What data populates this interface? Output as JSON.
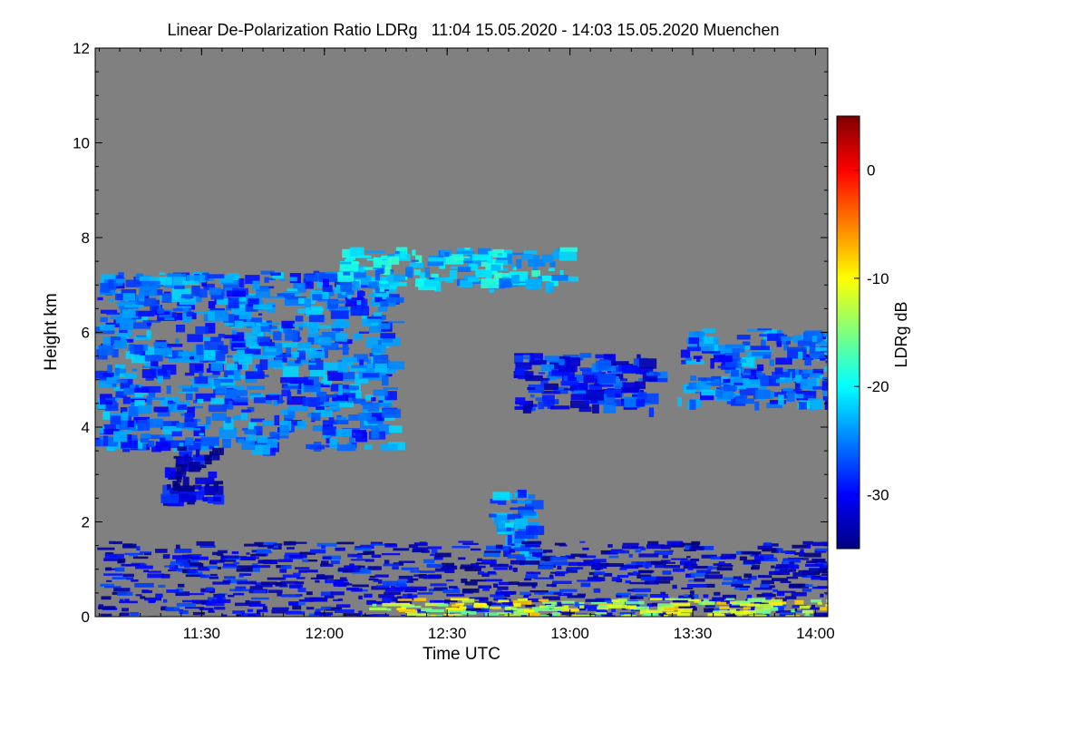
{
  "chart_data": {
    "type": "heatmap",
    "title": "Linear De-Polarization Ratio LDRg   11:04 15.05.2020 - 14:03 15.05.2020 Muenchen",
    "xlabel": "Time UTC",
    "ylabel": "Height km",
    "x_ticks": [
      "11:30",
      "12:00",
      "12:30",
      "13:00",
      "13:30",
      "14:00"
    ],
    "x_tick_values_min": [
      690,
      720,
      750,
      780,
      810,
      840
    ],
    "xlim_min": [
      664,
      843
    ],
    "y_ticks": [
      "0",
      "2",
      "4",
      "6",
      "8",
      "10",
      "12"
    ],
    "y_tick_values": [
      0,
      2,
      4,
      6,
      8,
      10,
      12
    ],
    "ylim": [
      0,
      12
    ],
    "colorbar": {
      "label": "LDRg dB",
      "ticks": [
        "0",
        "-10",
        "-20",
        "-30"
      ],
      "tick_values": [
        0,
        -10,
        -20,
        -30
      ],
      "range": [
        -35,
        5
      ],
      "colormap": [
        "#00007f",
        "#0000ff",
        "#007fff",
        "#00ffff",
        "#7fff7f",
        "#ffff00",
        "#ff7f00",
        "#ff0000",
        "#7f0000"
      ]
    },
    "background_color": "#808080",
    "features": [
      {
        "name": "upper-cloud",
        "x": [
          664,
          736
        ],
        "y": [
          3.6,
          7.3
        ],
        "ldr_db": -26
      },
      {
        "name": "cloud-tail",
        "x": [
          680,
          693
        ],
        "y": [
          2.5,
          3.6
        ],
        "ldr_db": -32
      },
      {
        "name": "cirrus-wisp",
        "x": [
          723,
          778
        ],
        "y": [
          7.0,
          7.8
        ],
        "ldr_db": -22
      },
      {
        "name": "mid-cloud-1",
        "x": [
          766,
          800
        ],
        "y": [
          4.4,
          5.6
        ],
        "ldr_db": -29
      },
      {
        "name": "mid-cloud-2",
        "x": [
          806,
          843
        ],
        "y": [
          4.5,
          6.1
        ],
        "ldr_db": -26
      },
      {
        "name": "convective-plume",
        "x": [
          760,
          770
        ],
        "y": [
          1.2,
          2.7
        ],
        "ldr_db": -25
      },
      {
        "name": "boundary-layer",
        "x": [
          664,
          843
        ],
        "y": [
          0.0,
          1.6
        ],
        "ldr_db": -31
      },
      {
        "name": "near-ground-noise",
        "x": [
          730,
          843
        ],
        "y": [
          0.0,
          0.4
        ],
        "ldr_db": -12
      }
    ]
  }
}
